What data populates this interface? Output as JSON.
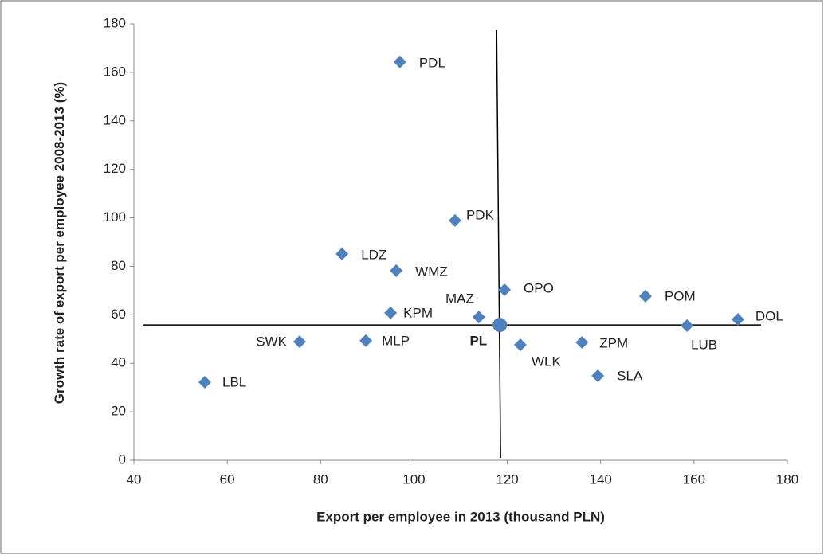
{
  "chart_data": {
    "type": "scatter",
    "x_label": "Export per employee in 2013 (thousand PLN)",
    "y_label": "Growth rate of export per employee 2008-2013 (%)",
    "color": "#4f81bd",
    "points": {
      "labels": [
        "PDL",
        "PDK",
        "LDZ",
        "WMZ",
        "OPO",
        "POM",
        "KPM",
        "MAZ",
        "DOL",
        "LUB",
        "SWK",
        "MLP",
        "WLK",
        "ZPM",
        "SLA",
        "LBL"
      ],
      "x": [
        97.0,
        108.8,
        84.6,
        96.2,
        119.4,
        149.6,
        95.0,
        113.9,
        169.4,
        158.5,
        75.5,
        89.7,
        122.8,
        136.0,
        139.4,
        55.2
      ],
      "y": [
        164.3,
        98.9,
        85.1,
        78.2,
        70.3,
        67.7,
        60.8,
        59.1,
        58.1,
        55.5,
        48.9,
        49.3,
        47.6,
        48.6,
        34.8,
        32.2
      ]
    },
    "reference": {
      "label": "PL",
      "x": 118.4,
      "y": 55.8
    },
    "xlim": [
      40,
      180
    ],
    "xticks": [
      40,
      60,
      80,
      100,
      120,
      140,
      160,
      180
    ],
    "ylim": [
      0,
      180
    ],
    "yticks": [
      0,
      20,
      40,
      60,
      80,
      100,
      120,
      140,
      160,
      180
    ],
    "grid": false
  }
}
